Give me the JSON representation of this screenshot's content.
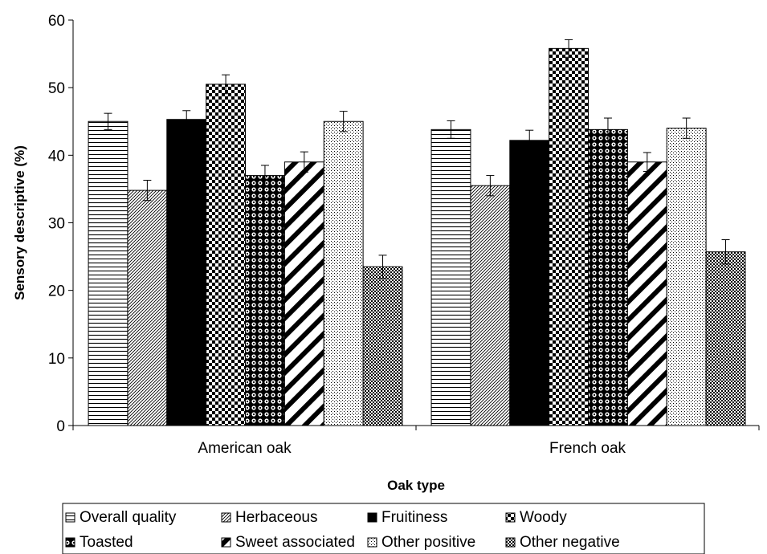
{
  "chart_data": {
    "type": "bar",
    "title": "",
    "xlabel": "Oak type",
    "ylabel": "Sensory descriptive (%)",
    "ylim": [
      0,
      60
    ],
    "yticks": [
      0,
      10,
      20,
      30,
      40,
      50,
      60
    ],
    "categories": [
      "American oak",
      "French oak"
    ],
    "series": [
      {
        "name": "Overall quality",
        "values": [
          45.0,
          43.8
        ],
        "errors": [
          1.2,
          1.3
        ],
        "pattern": "hlines"
      },
      {
        "name": "Herbaceous",
        "values": [
          34.8,
          35.5
        ],
        "errors": [
          1.5,
          1.5
        ],
        "pattern": "diag-fine"
      },
      {
        "name": "Fruitiness",
        "values": [
          45.3,
          42.2
        ],
        "errors": [
          1.3,
          1.5
        ],
        "pattern": "solid"
      },
      {
        "name": "Woody",
        "values": [
          50.5,
          55.8
        ],
        "errors": [
          1.4,
          1.3
        ],
        "pattern": "checker"
      },
      {
        "name": "Toasted",
        "values": [
          37.0,
          43.8
        ],
        "errors": [
          1.5,
          1.7
        ],
        "pattern": "dots-dark"
      },
      {
        "name": "Sweet associated",
        "values": [
          39.0,
          39.0
        ],
        "errors": [
          1.5,
          1.4
        ],
        "pattern": "diag-wide"
      },
      {
        "name": "Other positive",
        "values": [
          45.0,
          44.0
        ],
        "errors": [
          1.5,
          1.5
        ],
        "pattern": "dots-light"
      },
      {
        "name": "Other negative",
        "values": [
          23.5,
          25.7
        ],
        "errors": [
          1.7,
          1.8
        ],
        "pattern": "fine-check"
      }
    ],
    "legend_position": "bottom",
    "grid": false,
    "error_bars": true
  }
}
